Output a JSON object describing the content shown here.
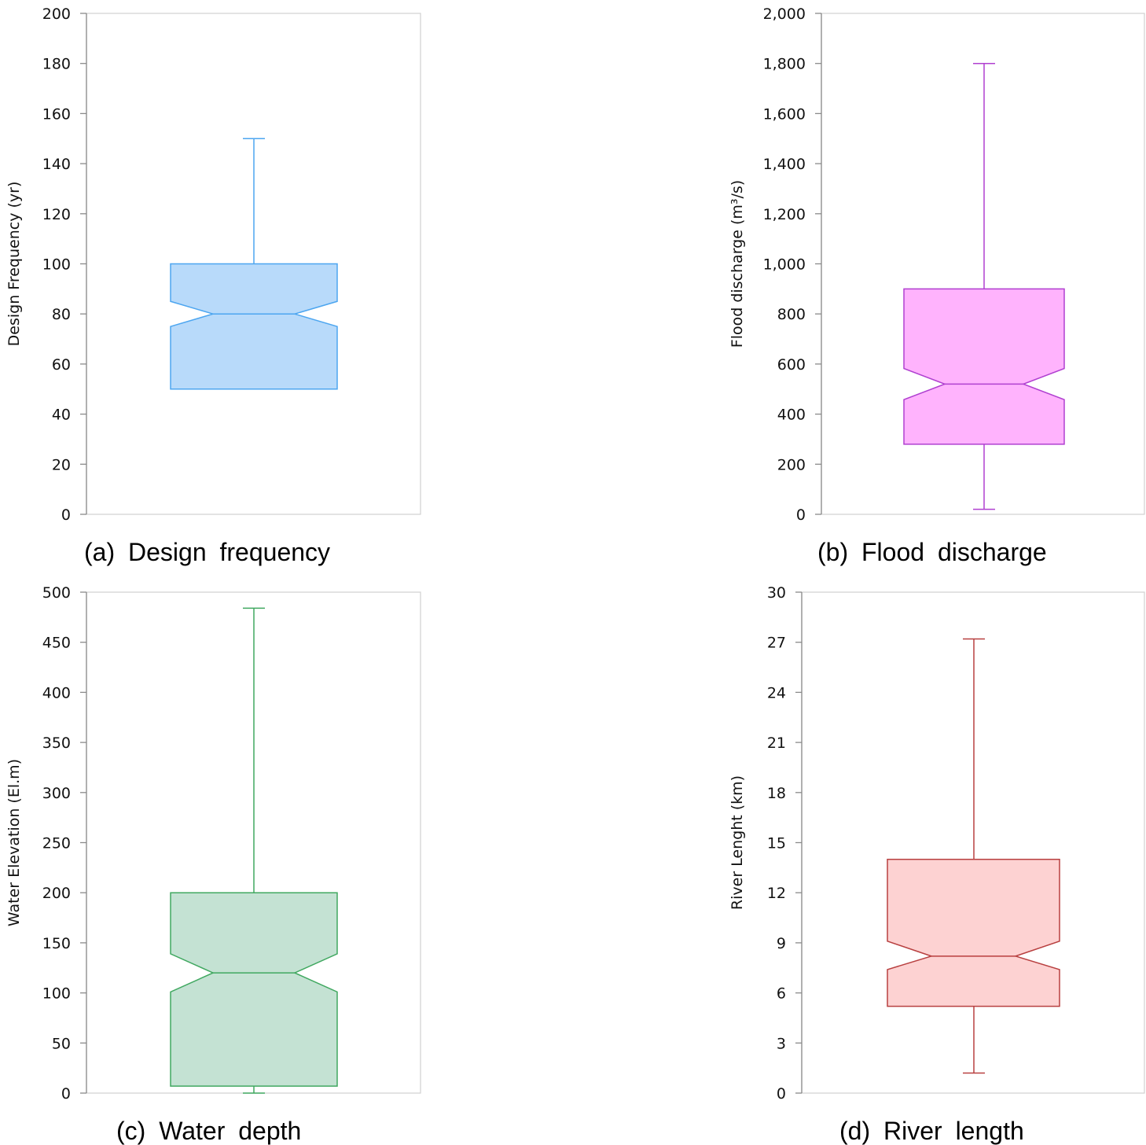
{
  "chart_data": [
    {
      "type": "box",
      "notched": true,
      "caption": "(a)  Design  frequency",
      "ylabel": "Design Frequency (yr)",
      "ylim": [
        0,
        200
      ],
      "yticks": [
        0,
        20,
        40,
        60,
        80,
        100,
        120,
        140,
        160,
        180,
        200
      ],
      "tick_format": "plain",
      "whisker_low": 50,
      "q1": 50,
      "median": 80,
      "q3": 100,
      "whisker_high": 150,
      "notch_low": 75,
      "notch_high": 85,
      "stroke": "#4da6f0",
      "fill": "#b8dafa"
    },
    {
      "type": "box",
      "notched": true,
      "caption": "(b)  Flood  discharge",
      "ylabel": "Flood discharge (m³/s)",
      "ylim": [
        0,
        2000
      ],
      "yticks": [
        0,
        200,
        400,
        600,
        800,
        1000,
        1200,
        1400,
        1600,
        1800,
        2000
      ],
      "tick_format": "comma",
      "whisker_low": 20,
      "q1": 280,
      "median": 520,
      "q3": 900,
      "whisker_high": 1800,
      "notch_low": 458,
      "notch_high": 582,
      "stroke": "#b040d0",
      "fill": "#ffb3fd"
    },
    {
      "type": "box",
      "notched": true,
      "caption": "(c)  Water  depth",
      "ylabel": "Water Elevation (El.m)",
      "ylim": [
        0,
        500
      ],
      "yticks": [
        0,
        50,
        100,
        150,
        200,
        250,
        300,
        350,
        400,
        450,
        500
      ],
      "tick_format": "plain",
      "whisker_low": 0,
      "q1": 7,
      "median": 120,
      "q3": 200,
      "whisker_high": 484,
      "notch_low": 101,
      "notch_high": 139,
      "stroke": "#40a860",
      "fill": "#c4e2d3"
    },
    {
      "type": "box",
      "notched": true,
      "caption": "(d)  River  length",
      "ylabel": "River Lenght (km)",
      "ylim": [
        0,
        30
      ],
      "yticks": [
        0,
        3,
        6,
        9,
        12,
        15,
        18,
        21,
        24,
        27,
        30
      ],
      "tick_format": "plain",
      "whisker_low": 1.2,
      "q1": 5.2,
      "median": 8.2,
      "q3": 14,
      "whisker_high": 27.2,
      "notch_low": 7.4,
      "notch_high": 9.1,
      "stroke": "#b84040",
      "fill": "#fdd2d2"
    }
  ]
}
